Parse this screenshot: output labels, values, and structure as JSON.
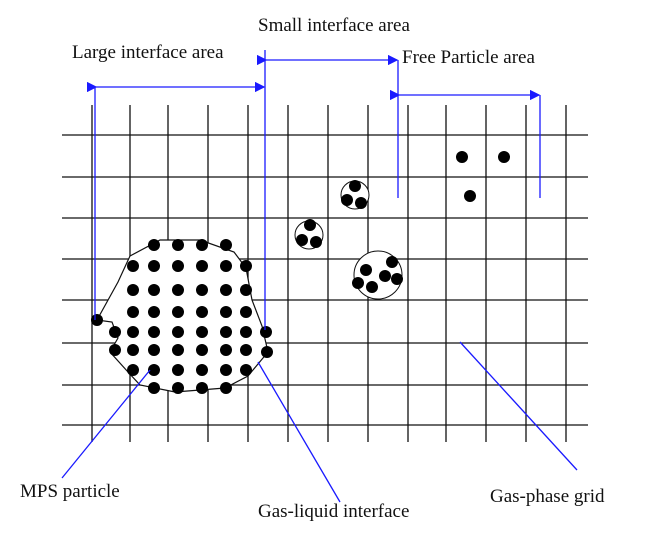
{
  "labels": {
    "large_interface": "Large interface area",
    "small_interface": "Small interface area",
    "free_particle": "Free Particle area",
    "mps_particle": "MPS particle",
    "gas_liquid_interface": "Gas-liquid interface",
    "gas_phase_grid": "Gas-phase grid"
  }
}
